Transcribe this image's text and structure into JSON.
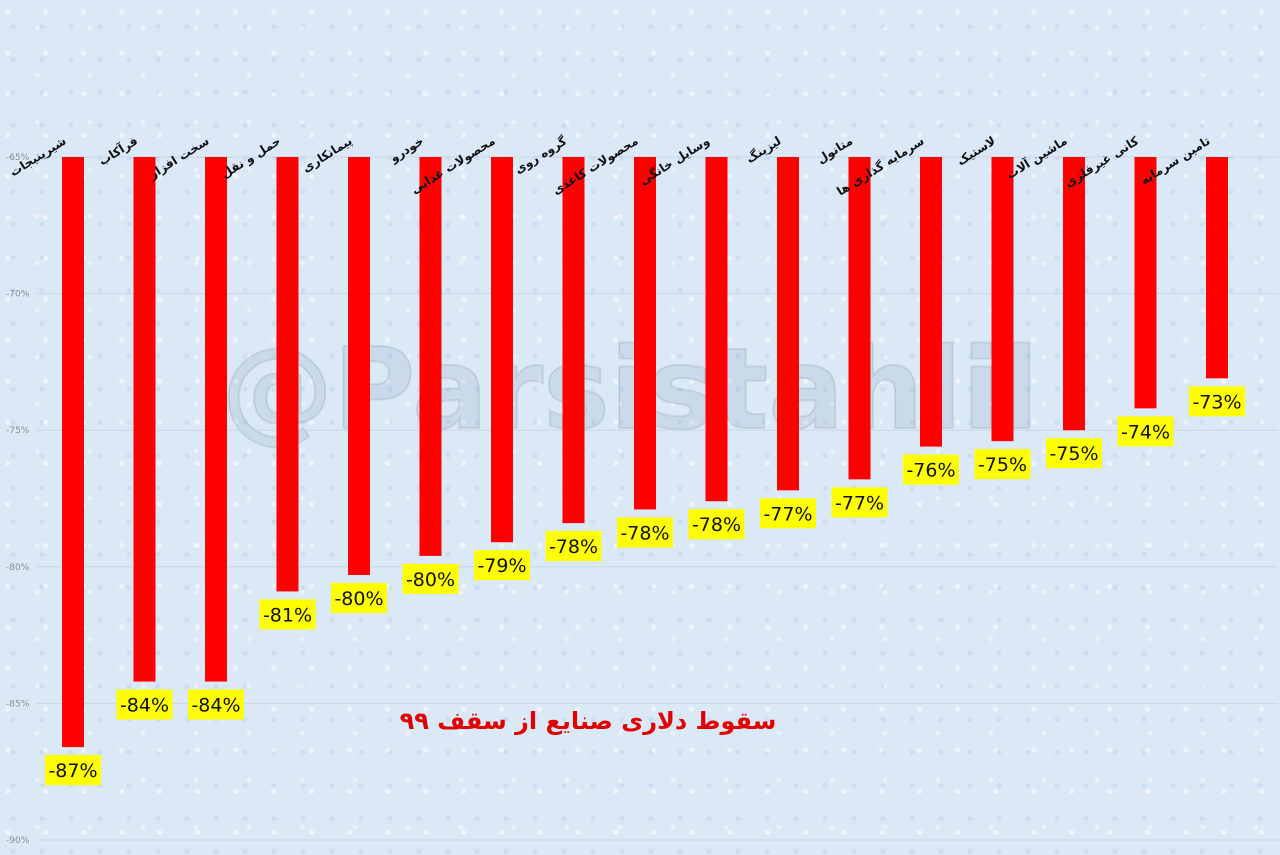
{
  "watermark": "@Parsistahlil",
  "chart_data": {
    "type": "bar",
    "title": "سقوط دلاری صنایع از سقف ۹۹",
    "xlabel": "",
    "ylabel": "",
    "ylim": [
      -90,
      -65
    ],
    "yticks": [
      -65,
      -70,
      -75,
      -80,
      -85,
      -90
    ],
    "ytick_labels": [
      "-65%",
      "-70%",
      "-75%",
      "-80%",
      "-85%",
      "-90%"
    ],
    "grid": true,
    "bar_color": "#ff0000",
    "label_bg_color": "#ffff00",
    "categories": [
      "شیرینیجات",
      "فرآکاب",
      "سخت افزار",
      "حمل و نقل",
      "پیمانکاری",
      "خودرو",
      "محصولات غذایی",
      "گروه روی",
      "محصولات کاغذی",
      "وسایل خانگی",
      "لیزینگ",
      "متانول",
      "سرمایه گذاری ها",
      "لاستیک",
      "ماشین آلات",
      "کانی غیرفلزی",
      "تامین سرمایه"
    ],
    "values": [
      -86.6,
      -84.2,
      -84.2,
      -80.9,
      -80.3,
      -79.6,
      -79.1,
      -78.4,
      -77.9,
      -77.6,
      -77.2,
      -76.8,
      -75.6,
      -75.4,
      -75.0,
      -74.2,
      -73.1
    ],
    "data_labels": [
      "-87%",
      "-84%",
      "-84%",
      "-81%",
      "-80%",
      "-80%",
      "-79%",
      "-78%",
      "-78%",
      "-78%",
      "-77%",
      "-77%",
      "-76%",
      "-75%",
      "-75%",
      "-74%",
      "-73%"
    ]
  }
}
